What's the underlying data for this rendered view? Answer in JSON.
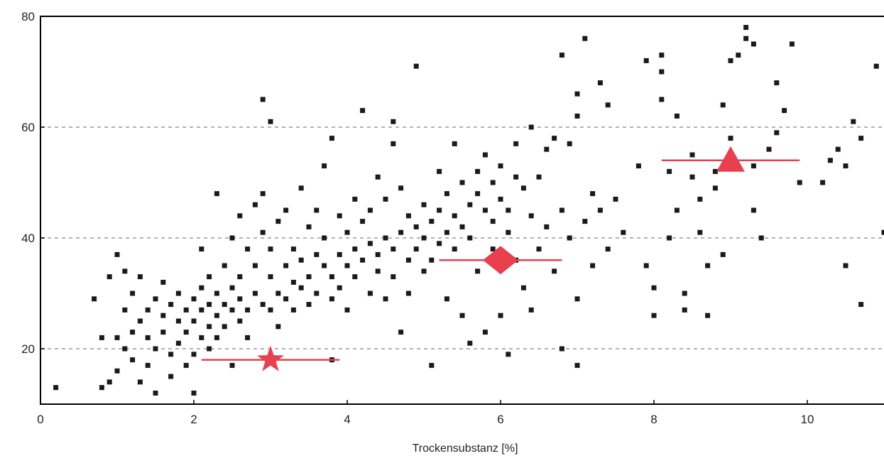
{
  "chart_data": {
    "type": "scatter",
    "title": "",
    "xlabel": "Trockensubstanz  [%]",
    "ylabel": "",
    "xlim": [
      0,
      11
    ],
    "ylim": [
      10,
      80
    ],
    "xticks": [
      0,
      2,
      4,
      6,
      8,
      10
    ],
    "yticks": [
      20,
      40,
      60,
      80
    ],
    "grid": "horizontal dashed at 20, 40, 60",
    "colors": {
      "points": "#1a1a1a",
      "markers": "#e8404f",
      "grid": "#999999",
      "axis": "#000000"
    },
    "series": [
      {
        "marker": "square",
        "color": "#1a1a1a",
        "points": [
          [
            0.2,
            13
          ],
          [
            0.7,
            29
          ],
          [
            0.8,
            22
          ],
          [
            0.8,
            13
          ],
          [
            0.9,
            33
          ],
          [
            0.9,
            14
          ],
          [
            1.0,
            22
          ],
          [
            1.0,
            16
          ],
          [
            1.0,
            37
          ],
          [
            1.1,
            27
          ],
          [
            1.1,
            20
          ],
          [
            1.1,
            34
          ],
          [
            1.2,
            23
          ],
          [
            1.2,
            30
          ],
          [
            1.2,
            18
          ],
          [
            1.3,
            25
          ],
          [
            1.3,
            14
          ],
          [
            1.3,
            33
          ],
          [
            1.4,
            22
          ],
          [
            1.4,
            27
          ],
          [
            1.4,
            17
          ],
          [
            1.5,
            20
          ],
          [
            1.5,
            29
          ],
          [
            1.5,
            12
          ],
          [
            1.6,
            26
          ],
          [
            1.6,
            23
          ],
          [
            1.6,
            32
          ],
          [
            1.7,
            19
          ],
          [
            1.7,
            28
          ],
          [
            1.7,
            15
          ],
          [
            1.8,
            25
          ],
          [
            1.8,
            21
          ],
          [
            1.8,
            30
          ],
          [
            1.9,
            27
          ],
          [
            1.9,
            17
          ],
          [
            1.9,
            23
          ],
          [
            2.0,
            29
          ],
          [
            2.0,
            25
          ],
          [
            2.0,
            12
          ],
          [
            2.0,
            19
          ],
          [
            2.1,
            31
          ],
          [
            2.1,
            27
          ],
          [
            2.1,
            22
          ],
          [
            2.1,
            38
          ],
          [
            2.2,
            28
          ],
          [
            2.2,
            24
          ],
          [
            2.2,
            33
          ],
          [
            2.2,
            20
          ],
          [
            2.3,
            30
          ],
          [
            2.3,
            26
          ],
          [
            2.3,
            48
          ],
          [
            2.3,
            22
          ],
          [
            2.4,
            28
          ],
          [
            2.4,
            35
          ],
          [
            2.4,
            24
          ],
          [
            2.5,
            31
          ],
          [
            2.5,
            27
          ],
          [
            2.5,
            40
          ],
          [
            2.5,
            17
          ],
          [
            2.6,
            29
          ],
          [
            2.6,
            25
          ],
          [
            2.6,
            44
          ],
          [
            2.6,
            33
          ],
          [
            2.7,
            27
          ],
          [
            2.7,
            38
          ],
          [
            2.7,
            22
          ],
          [
            2.8,
            30
          ],
          [
            2.8,
            46
          ],
          [
            2.8,
            35
          ],
          [
            2.9,
            28
          ],
          [
            2.9,
            65
          ],
          [
            2.9,
            41
          ],
          [
            2.9,
            48
          ],
          [
            3.0,
            33
          ],
          [
            3.0,
            27
          ],
          [
            3.0,
            61
          ],
          [
            3.0,
            38
          ],
          [
            3.1,
            30
          ],
          [
            3.1,
            43
          ],
          [
            3.1,
            24
          ],
          [
            3.2,
            35
          ],
          [
            3.2,
            29
          ],
          [
            3.2,
            45
          ],
          [
            3.3,
            32
          ],
          [
            3.3,
            38
          ],
          [
            3.3,
            27
          ],
          [
            3.4,
            36
          ],
          [
            3.4,
            49
          ],
          [
            3.4,
            31
          ],
          [
            3.5,
            33
          ],
          [
            3.5,
            42
          ],
          [
            3.5,
            28
          ],
          [
            3.6,
            37
          ],
          [
            3.6,
            45
          ],
          [
            3.6,
            30
          ],
          [
            3.7,
            35
          ],
          [
            3.7,
            53
          ],
          [
            3.7,
            40
          ],
          [
            3.8,
            33
          ],
          [
            3.8,
            58
          ],
          [
            3.8,
            29
          ],
          [
            3.8,
            18
          ],
          [
            3.9,
            37
          ],
          [
            3.9,
            44
          ],
          [
            3.9,
            31
          ],
          [
            4.0,
            35
          ],
          [
            4.0,
            41
          ],
          [
            4.0,
            27
          ],
          [
            4.1,
            38
          ],
          [
            4.1,
            47
          ],
          [
            4.1,
            33
          ],
          [
            4.2,
            36
          ],
          [
            4.2,
            43
          ],
          [
            4.2,
            63
          ],
          [
            4.3,
            39
          ],
          [
            4.3,
            30
          ],
          [
            4.3,
            45
          ],
          [
            4.4,
            37
          ],
          [
            4.4,
            51
          ],
          [
            4.4,
            34
          ],
          [
            4.5,
            40
          ],
          [
            4.5,
            29
          ],
          [
            4.5,
            47
          ],
          [
            4.6,
            38
          ],
          [
            4.6,
            57
          ],
          [
            4.6,
            61
          ],
          [
            4.6,
            33
          ],
          [
            4.7,
            41
          ],
          [
            4.7,
            23
          ],
          [
            4.7,
            49
          ],
          [
            4.8,
            36
          ],
          [
            4.8,
            44
          ],
          [
            4.8,
            30
          ],
          [
            4.9,
            42
          ],
          [
            4.9,
            71
          ],
          [
            4.9,
            38
          ],
          [
            5.0,
            40
          ],
          [
            5.0,
            46
          ],
          [
            5.0,
            34
          ],
          [
            5.1,
            43
          ],
          [
            5.1,
            36
          ],
          [
            5.1,
            17
          ],
          [
            5.2,
            45
          ],
          [
            5.2,
            39
          ],
          [
            5.2,
            52
          ],
          [
            5.3,
            41
          ],
          [
            5.3,
            29
          ],
          [
            5.3,
            48
          ],
          [
            5.4,
            44
          ],
          [
            5.4,
            57
          ],
          [
            5.4,
            38
          ],
          [
            5.5,
            42
          ],
          [
            5.5,
            50
          ],
          [
            5.5,
            26
          ],
          [
            5.6,
            46
          ],
          [
            5.6,
            40
          ],
          [
            5.6,
            21
          ],
          [
            5.7,
            48
          ],
          [
            5.7,
            34
          ],
          [
            5.7,
            52
          ],
          [
            5.8,
            45
          ],
          [
            5.8,
            55
          ],
          [
            5.8,
            23
          ],
          [
            5.9,
            43
          ],
          [
            5.9,
            50
          ],
          [
            5.9,
            38
          ],
          [
            6.0,
            47
          ],
          [
            6.0,
            53
          ],
          [
            6.0,
            26
          ],
          [
            6.1,
            45
          ],
          [
            6.1,
            41
          ],
          [
            6.1,
            19
          ],
          [
            6.2,
            51
          ],
          [
            6.2,
            36
          ],
          [
            6.2,
            57
          ],
          [
            6.3,
            49
          ],
          [
            6.3,
            31
          ],
          [
            6.4,
            44
          ],
          [
            6.4,
            60
          ],
          [
            6.4,
            27
          ],
          [
            6.5,
            51
          ],
          [
            6.5,
            38
          ],
          [
            6.6,
            56
          ],
          [
            6.6,
            42
          ],
          [
            6.7,
            58
          ],
          [
            6.7,
            34
          ],
          [
            6.8,
            73
          ],
          [
            6.8,
            45
          ],
          [
            6.8,
            20
          ],
          [
            6.9,
            57
          ],
          [
            6.9,
            40
          ],
          [
            7.0,
            66
          ],
          [
            7.0,
            62
          ],
          [
            7.0,
            29
          ],
          [
            7.0,
            17
          ],
          [
            7.1,
            76
          ],
          [
            7.1,
            43
          ],
          [
            7.2,
            48
          ],
          [
            7.2,
            35
          ],
          [
            7.3,
            68
          ],
          [
            7.3,
            45
          ],
          [
            7.4,
            64
          ],
          [
            7.4,
            38
          ],
          [
            7.5,
            47
          ],
          [
            7.6,
            41
          ],
          [
            7.8,
            53
          ],
          [
            7.9,
            72
          ],
          [
            7.9,
            35
          ],
          [
            8.0,
            26
          ],
          [
            8.0,
            31
          ],
          [
            8.1,
            73
          ],
          [
            8.1,
            70
          ],
          [
            8.1,
            65
          ],
          [
            8.2,
            52
          ],
          [
            8.2,
            40
          ],
          [
            8.3,
            62
          ],
          [
            8.3,
            45
          ],
          [
            8.4,
            30
          ],
          [
            8.4,
            27
          ],
          [
            8.5,
            55
          ],
          [
            8.5,
            51
          ],
          [
            8.6,
            47
          ],
          [
            8.6,
            41
          ],
          [
            8.7,
            35
          ],
          [
            8.7,
            26
          ],
          [
            8.8,
            52
          ],
          [
            8.8,
            49
          ],
          [
            8.9,
            64
          ],
          [
            8.9,
            37
          ],
          [
            9.0,
            72
          ],
          [
            9.0,
            58
          ],
          [
            9.1,
            73
          ],
          [
            9.2,
            78
          ],
          [
            9.2,
            76
          ],
          [
            9.3,
            75
          ],
          [
            9.3,
            53
          ],
          [
            9.3,
            45
          ],
          [
            9.4,
            40
          ],
          [
            9.5,
            56
          ],
          [
            9.6,
            68
          ],
          [
            9.6,
            59
          ],
          [
            9.7,
            63
          ],
          [
            9.8,
            75
          ],
          [
            9.9,
            50
          ],
          [
            10.2,
            50
          ],
          [
            10.3,
            54
          ],
          [
            10.4,
            56
          ],
          [
            10.5,
            53
          ],
          [
            10.5,
            35
          ],
          [
            10.6,
            61
          ],
          [
            10.7,
            58
          ],
          [
            10.7,
            28
          ],
          [
            10.9,
            71
          ],
          [
            11.0,
            41
          ]
        ]
      },
      {
        "name": "",
        "marker": "star",
        "color": "#e8404f",
        "points": [
          [
            3.0,
            18
          ]
        ],
        "xerr": [
          [
            2.1,
            3.9
          ]
        ]
      },
      {
        "name": "",
        "marker": "diamond",
        "color": "#e8404f",
        "points": [
          [
            6.0,
            36
          ]
        ],
        "xerr": [
          [
            5.2,
            6.8
          ]
        ]
      },
      {
        "name": "",
        "marker": "triangle",
        "color": "#e8404f",
        "points": [
          [
            9.0,
            54
          ]
        ],
        "xerr": [
          [
            8.1,
            9.9
          ]
        ]
      }
    ]
  }
}
